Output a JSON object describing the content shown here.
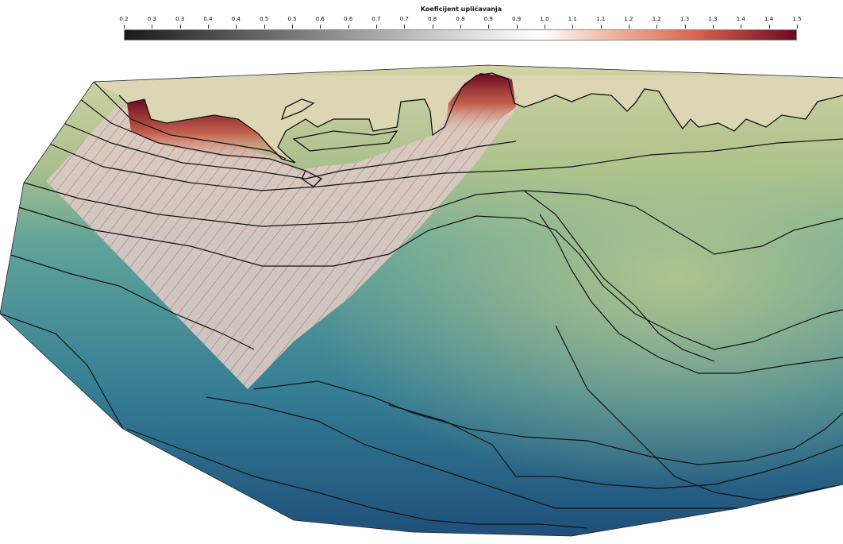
{
  "legend": {
    "title": "Koeficijent uplićavanja",
    "ticks": [
      "0.2",
      "0.3",
      "0.3",
      "0.4",
      "0.4",
      "0.5",
      "0.5",
      "0.6",
      "0.6",
      "0.7",
      "0.7",
      "0.8",
      "0.8",
      "0.9",
      "0.9",
      "1.0",
      "1.1",
      "1.1",
      "1.2",
      "1.2",
      "1.3",
      "1.3",
      "1.4",
      "1.4",
      "1.5"
    ],
    "colors": {
      "low": "#1a1a1a",
      "mid": "#ffffff",
      "high": "#6b0a1f"
    }
  },
  "map": {
    "land_color": "#ddd6b4",
    "sea_shallow": "#c9cfa0",
    "sea_mid": "#4a9aa0",
    "sea_deep": "#1f5c82",
    "highlight_zone_color": "#d9c7c0"
  }
}
